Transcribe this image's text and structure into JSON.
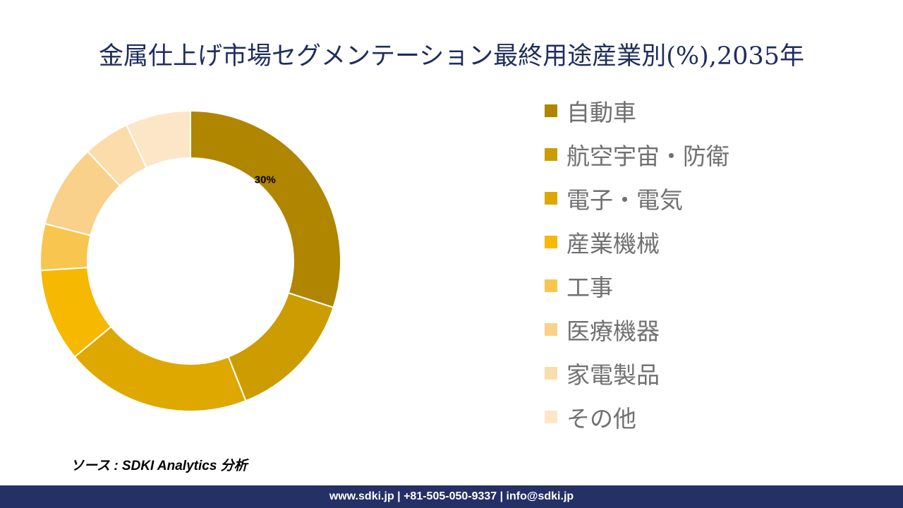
{
  "title": "金属仕上げ市場セグメンテーション最終用途産業別(%),2035年",
  "chart_data": {
    "type": "donut",
    "title": "金属仕上げ市場セグメンテーション最終用途産業別(%),2035年",
    "unit": "%",
    "start_angle": "12 o'clock, clockwise",
    "legend_position": "right",
    "slices": [
      {
        "label": "自動車",
        "value": 30,
        "color": "#b08500",
        "data_label": "30%"
      },
      {
        "label": "航空宇宙・防衛",
        "value": 14,
        "color": "#cc9c00",
        "data_label": ""
      },
      {
        "label": "電子・電気",
        "value": 20,
        "color": "#dea800",
        "data_label": ""
      },
      {
        "label": "産業機械",
        "value": 10,
        "color": "#f6b800",
        "data_label": ""
      },
      {
        "label": "工事",
        "value": 5,
        "color": "#f8c64e",
        "data_label": ""
      },
      {
        "label": "医療機器",
        "value": 9,
        "color": "#fad18a",
        "data_label": ""
      },
      {
        "label": "家電製品",
        "value": 5,
        "color": "#fcdcaa",
        "data_label": ""
      },
      {
        "label": "その他",
        "value": 7,
        "color": "#fde6c8",
        "data_label": ""
      }
    ]
  },
  "source": "ソース : SDKI Analytics 分析",
  "footer": "www.sdki.jp | +81-505-050-9337 | info@sdki.jp"
}
